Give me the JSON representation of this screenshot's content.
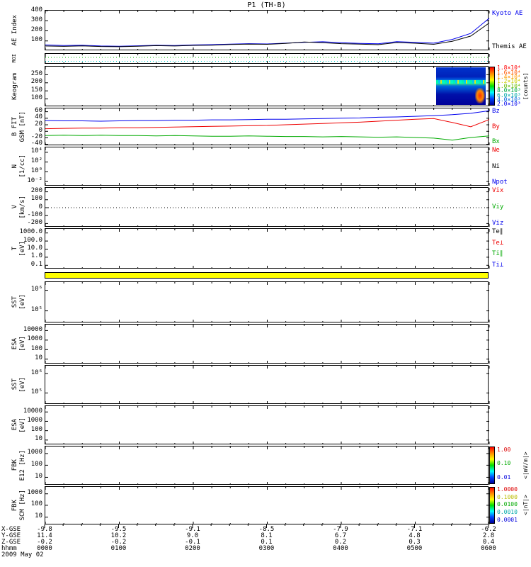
{
  "title": "P1 (TH-B)",
  "date_label": "2009 May 02",
  "xaxis": {
    "tick_labels": [
      "0000",
      "0100",
      "0200",
      "0300",
      "0400",
      "0500",
      "0600"
    ],
    "rows": [
      {
        "label": "X-GSE",
        "values": [
          "-9.8",
          "-9.5",
          "-9.1",
          "-8.5",
          "-7.9",
          "-7.1",
          "-6.2"
        ]
      },
      {
        "label": "Y-GSE",
        "values": [
          "11.4",
          "10.2",
          "9.0",
          "8.1",
          "6.7",
          "4.8",
          "2.8"
        ]
      },
      {
        "label": "Z-GSE",
        "values": [
          "-0.2",
          "-0.2",
          "-0.1",
          "0.1",
          "0.2",
          "0.3",
          "0.4"
        ]
      },
      {
        "label": "hhmm",
        "values": [
          "0000",
          "0100",
          "0200",
          "0300",
          "0400",
          "0500",
          "0600"
        ]
      }
    ]
  },
  "chart_data": {
    "ae": {
      "type": "line",
      "left_label": [
        "AE Index"
      ],
      "ylim": [
        0,
        400
      ],
      "yticks": [
        [
          "400",
          0
        ],
        [
          "300",
          0.25
        ],
        [
          "200",
          0.5
        ],
        [
          "100",
          0.75
        ]
      ],
      "x": [
        0,
        0.25,
        0.5,
        0.75,
        1,
        1.25,
        1.5,
        1.75,
        2,
        2.25,
        2.5,
        2.75,
        3,
        3.25,
        3.5,
        3.75,
        4,
        4.25,
        4.5,
        4.75,
        5,
        5.25,
        5.5,
        5.75,
        6
      ],
      "series": [
        {
          "name": "Kyoto AE",
          "color": "#0000ee",
          "y": [
            60,
            55,
            57,
            50,
            48,
            52,
            57,
            54,
            60,
            63,
            68,
            73,
            70,
            78,
            86,
            92,
            82,
            76,
            72,
            93,
            86,
            78,
            115,
            175,
            325
          ]
        },
        {
          "name": "Themis AE",
          "color": "#000000",
          "y": [
            50,
            46,
            51,
            45,
            43,
            48,
            53,
            50,
            56,
            58,
            65,
            69,
            67,
            75,
            90,
            83,
            73,
            68,
            63,
            84,
            77,
            67,
            97,
            148,
            278
          ]
        }
      ],
      "right_labels": [
        {
          "text": "Kyoto AE",
          "color": "#0000ee"
        },
        {
          "text": "Themis AE",
          "color": "#000000"
        }
      ]
    },
    "roi": {
      "type": "strip",
      "left_label": [
        "ROI"
      ],
      "small": true,
      "hlines": [
        {
          "f": 0.33,
          "color": "#00bb00",
          "dash": "1,3"
        },
        {
          "f": 0.7,
          "color": "#00cccc",
          "dash": "1,3"
        }
      ]
    },
    "keogram": {
      "type": "heatmap",
      "left_label": [
        "Keogram"
      ],
      "yticks": [
        [
          "250",
          0.2
        ],
        [
          "200",
          0.4
        ],
        [
          "150",
          0.6
        ],
        [
          "100",
          0.8
        ]
      ],
      "patch": {
        "x0": 5.3,
        "x1": 5.97,
        "description": "keogram image segment ~0518-0558 UT: mostly dark blue counts with bright green/cyan auroral band and red-orange patch at lower right"
      },
      "colorbar": {
        "unit": "[counts]",
        "ticks": [
          [
            "1.8×10⁴",
            0.05,
            "#ff0000"
          ],
          [
            "1.6×10⁴",
            0.16,
            "#ff5500"
          ],
          [
            "1.4×10⁴",
            0.27,
            "#ff9900"
          ],
          [
            "1.2×10⁴",
            0.38,
            "#cccc00"
          ],
          [
            "1.0×10⁴",
            0.5,
            "#66bb00"
          ],
          [
            "8.0×10³",
            0.61,
            "#00aa44"
          ],
          [
            "6.0×10³",
            0.72,
            "#00aaaa"
          ],
          [
            "4.0×10³",
            0.83,
            "#0066dd"
          ],
          [
            "2.0×10³",
            0.94,
            "#0000ee"
          ]
        ]
      }
    },
    "bfit": {
      "type": "line",
      "left_label": [
        "B FIT",
        "GSM [nT]"
      ],
      "ylim": [
        -45,
        70
      ],
      "yticks": [
        [
          "60",
          0.087
        ],
        [
          "40",
          0.261
        ],
        [
          "20",
          0.435
        ],
        [
          "0",
          0.609
        ],
        [
          "-20",
          0.783
        ],
        [
          "-40",
          0.957
        ]
      ],
      "x": [
        0,
        0.25,
        0.5,
        0.75,
        1,
        1.25,
        1.5,
        1.75,
        2,
        2.25,
        2.5,
        2.75,
        3,
        3.25,
        3.5,
        3.75,
        4,
        4.25,
        4.5,
        4.75,
        5,
        5.25,
        5.5,
        5.75,
        6
      ],
      "series": [
        {
          "name": "Bz",
          "color": "#0000ee",
          "y": [
            33,
            32,
            32,
            31,
            32,
            33,
            33,
            34,
            34,
            35,
            35,
            36,
            37,
            37,
            38,
            39,
            40,
            41,
            43,
            44,
            46,
            48,
            51,
            55,
            63
          ]
        },
        {
          "name": "By",
          "color": "#ee0000",
          "y": [
            8,
            9,
            10,
            10,
            11,
            11,
            12,
            13,
            14,
            15,
            16,
            17,
            18,
            20,
            22,
            24,
            26,
            28,
            31,
            34,
            37,
            39,
            27,
            14,
            36
          ]
        },
        {
          "name": "Bx",
          "color": "#00aa00",
          "y": [
            -13,
            -12,
            -13,
            -12,
            -13,
            -13,
            -14,
            -13,
            -14,
            -15,
            -15,
            -14,
            -15,
            -16,
            -16,
            -17,
            -16,
            -17,
            -18,
            -17,
            -19,
            -21,
            -27,
            -19,
            -14
          ]
        }
      ],
      "right_labels": [
        {
          "text": "Bz",
          "color": "#0000ee"
        },
        {
          "text": "By",
          "color": "#ee0000"
        },
        {
          "text": "Bx",
          "color": "#00aa00"
        }
      ]
    },
    "density": {
      "type": "line",
      "left_label": [
        "N",
        "[1/cc]"
      ],
      "yticks": [
        [
          "10⁴",
          0.125
        ],
        [
          "10²",
          0.375
        ],
        [
          "10⁰",
          0.625
        ],
        [
          "10⁻²",
          0.875
        ]
      ],
      "series": [],
      "right_labels": [
        {
          "text": "Ne",
          "color": "#ee0000"
        },
        {
          "text": "Ni",
          "color": "#000000"
        },
        {
          "text": "Npot",
          "color": "#0000ee"
        }
      ]
    },
    "velocity": {
      "type": "line",
      "left_label": [
        "V",
        "[km/s]"
      ],
      "ylim": [
        -250,
        250
      ],
      "yticks": [
        [
          "200",
          0.1
        ],
        [
          "100",
          0.3
        ],
        [
          "0",
          0.5
        ],
        [
          "-100",
          0.7
        ],
        [
          "-200",
          0.9
        ]
      ],
      "hlines": [
        {
          "f": 0.5,
          "color": "#000000",
          "dash": "1,3"
        }
      ],
      "series": [],
      "right_labels": [
        {
          "text": "Vix",
          "color": "#ee0000"
        },
        {
          "text": "Viy",
          "color": "#00aa00"
        },
        {
          "text": "Viz",
          "color": "#0000ee"
        }
      ]
    },
    "temperature": {
      "type": "line",
      "left_label": [
        "T",
        "[eV]"
      ],
      "yticks": [
        [
          "1000.0",
          0.1
        ],
        [
          "100.0",
          0.3
        ],
        [
          "10.0",
          0.5
        ],
        [
          "1.0",
          0.7
        ],
        [
          "0.1",
          0.9
        ]
      ],
      "series": [],
      "right_labels": [
        {
          "text": "Te∥",
          "color": "#000000"
        },
        {
          "text": "Te⊥",
          "color": "#ee0000"
        },
        {
          "text": "Ti∥",
          "color": "#00aa00"
        },
        {
          "text": "Ti⊥",
          "color": "#0000ee"
        }
      ]
    },
    "flags": {
      "type": "bar",
      "fill": "#ffff00",
      "description": "full-width yellow data-quality flag bar"
    },
    "sst_ion": {
      "type": "spectrogram",
      "left_label": [
        "SST",
        "[eV]"
      ],
      "yticks": [
        [
          "10⁶",
          0.2
        ],
        [
          "10⁵",
          0.7
        ]
      ],
      "series": []
    },
    "esa_ion": {
      "type": "spectrogram",
      "left_label": [
        "ESA",
        "[eV]"
      ],
      "yticks": [
        [
          "10000",
          0.15
        ],
        [
          "1000",
          0.39
        ],
        [
          "100",
          0.63
        ],
        [
          "10",
          0.87
        ]
      ],
      "series": []
    },
    "sst_elec": {
      "type": "spectrogram",
      "left_label": [
        "SST",
        "[eV]"
      ],
      "yticks": [
        [
          "10⁶",
          0.2
        ],
        [
          "10⁵",
          0.7
        ]
      ],
      "series": []
    },
    "esa_elec": {
      "type": "spectrogram",
      "left_label": [
        "ESA",
        "[eV]"
      ],
      "yticks": [
        [
          "10000",
          0.15
        ],
        [
          "1000",
          0.39
        ],
        [
          "100",
          0.63
        ],
        [
          "10",
          0.87
        ]
      ],
      "series": []
    },
    "fbk_e": {
      "type": "spectrogram",
      "left_label": [
        "FBK",
        "E12 [Hz]"
      ],
      "yticks": [
        [
          "1000",
          0.18
        ],
        [
          "100",
          0.48
        ],
        [
          "10",
          0.79
        ]
      ],
      "series": [],
      "colorbar": {
        "unit": "<|mV/m|>",
        "ticks": [
          [
            "1.00",
            0.1,
            "#dd0000"
          ],
          [
            "0.10",
            0.45,
            "#00aa00"
          ],
          [
            "0.01",
            0.8,
            "#0000dd"
          ]
        ]
      }
    },
    "fbk_scm": {
      "type": "spectrogram",
      "left_label": [
        "FBK",
        "SCM [Hz]"
      ],
      "yticks": [
        [
          "1000",
          0.18
        ],
        [
          "100",
          0.48
        ],
        [
          "10",
          0.79
        ]
      ],
      "series": [],
      "colorbar": {
        "unit": "<|nT|>",
        "ticks": [
          [
            "1.0000",
            0.08,
            "#dd0000"
          ],
          [
            "0.1000",
            0.28,
            "#bbbb00"
          ],
          [
            "0.0100",
            0.48,
            "#00aa00"
          ],
          [
            "0.0010",
            0.68,
            "#00aaaa"
          ],
          [
            "0.0001",
            0.88,
            "#0000dd"
          ]
        ]
      }
    }
  }
}
